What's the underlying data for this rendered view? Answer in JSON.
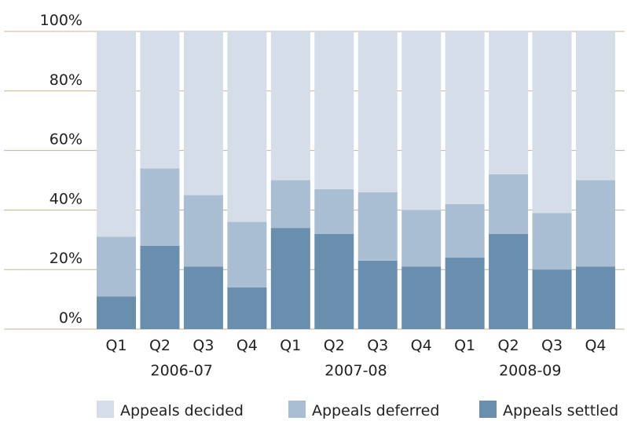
{
  "chart_data": {
    "type": "stacked_bar",
    "categories": [
      "Q1",
      "Q2",
      "Q3",
      "Q4",
      "Q1",
      "Q2",
      "Q3",
      "Q4",
      "Q1",
      "Q2",
      "Q3",
      "Q4"
    ],
    "groups": [
      "2006-07",
      "2007-08",
      "2008-09"
    ],
    "series": [
      {
        "name": "Appeals decided",
        "color": "#d5dde8",
        "values": [
          69,
          46,
          55,
          64,
          50,
          53,
          54,
          60,
          58,
          48,
          61,
          50
        ]
      },
      {
        "name": "Appeals deferred",
        "color": "#a9bed3",
        "values": [
          20,
          26,
          24,
          22,
          16,
          15,
          23,
          19,
          18,
          20,
          19,
          29
        ]
      },
      {
        "name": "Appeals settled",
        "color": "#6a8eae",
        "values": [
          11,
          28,
          21,
          14,
          34,
          32,
          23,
          21,
          24,
          32,
          20,
          21
        ]
      }
    ],
    "ylim": [
      0,
      100
    ],
    "yticks": [
      {
        "value": 0,
        "label": "0%"
      },
      {
        "value": 20,
        "label": "20%"
      },
      {
        "value": 40,
        "label": "40%"
      },
      {
        "value": 60,
        "label": "60%"
      },
      {
        "value": 80,
        "label": "80%"
      },
      {
        "value": 100,
        "label": "100%"
      }
    ],
    "grid": true,
    "legend": "bottom"
  }
}
